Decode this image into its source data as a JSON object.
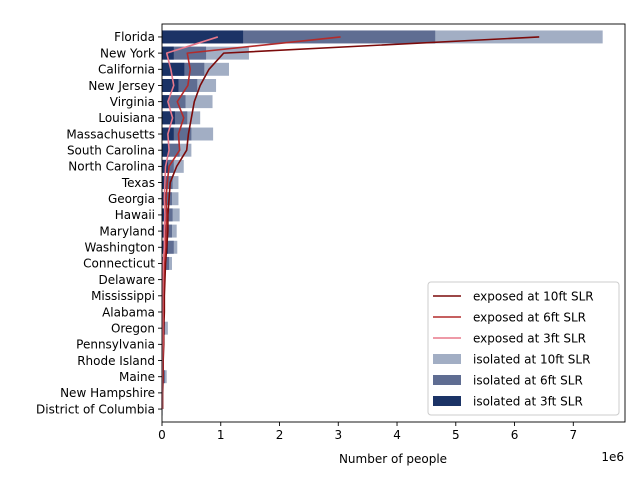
{
  "chart_data": {
    "type": "bar",
    "orientation": "horizontal",
    "xlabel": "Number of people",
    "x_offset_label": "1e6",
    "x_multiplier": 1000000,
    "xlim": [
      0,
      7.88
    ],
    "xticks": [
      0,
      1,
      2,
      3,
      4,
      5,
      6,
      7
    ],
    "grid": false,
    "legend_position": "lower right",
    "categories": [
      "Florida",
      "New York",
      "California",
      "New Jersey",
      "Virginia",
      "Louisiana",
      "Massachusetts",
      "South Carolina",
      "North Carolina",
      "Texas",
      "Georgia",
      "Hawaii",
      "Maryland",
      "Washington",
      "Connecticut",
      "Delaware",
      "Mississippi",
      "Alabama",
      "Oregon",
      "Pennsylvania",
      "Rhode Island",
      "Maine",
      "New Hampshire",
      "District of Columbia"
    ],
    "series": [
      {
        "name": "isolated at 10ft SLR",
        "kind": "bar",
        "color": "#a2aec4",
        "values": [
          7.5,
          1.48,
          1.14,
          0.92,
          0.86,
          0.65,
          0.87,
          0.5,
          0.37,
          0.28,
          0.28,
          0.3,
          0.25,
          0.26,
          0.17,
          0.03,
          0.03,
          0.03,
          0.1,
          0.03,
          0.02,
          0.08,
          0.01,
          0.01
        ]
      },
      {
        "name": "isolated at 6ft SLR",
        "kind": "bar",
        "color": "#5f6d92",
        "values": [
          4.65,
          0.75,
          0.72,
          0.6,
          0.4,
          0.43,
          0.5,
          0.3,
          0.2,
          0.18,
          0.17,
          0.18,
          0.17,
          0.2,
          0.12,
          0.02,
          0.02,
          0.02,
          0.05,
          0.02,
          0.01,
          0.05,
          0.01,
          0.005
        ]
      },
      {
        "name": "isolated at 3ft SLR",
        "kind": "bar",
        "color": "#1b3366",
        "values": [
          1.38,
          0.2,
          0.38,
          0.28,
          0.12,
          0.22,
          0.2,
          0.12,
          0.1,
          0.07,
          0.07,
          0.1,
          0.08,
          0.1,
          0.05,
          0.01,
          0.01,
          0.01,
          0.02,
          0.01,
          0.005,
          0.02,
          0.003,
          0.002
        ]
      },
      {
        "name": "exposed at 10ft SLR",
        "kind": "line",
        "color": "#7b0a0a",
        "values": [
          6.42,
          1.05,
          0.8,
          0.65,
          0.55,
          0.5,
          0.45,
          0.42,
          0.25,
          0.14,
          0.12,
          0.1,
          0.1,
          0.08,
          0.06,
          0.05,
          0.04,
          0.04,
          0.03,
          0.03,
          0.02,
          0.02,
          0.01,
          0.01
        ]
      },
      {
        "name": "exposed at 6ft SLR",
        "kind": "line",
        "color": "#b32b2b",
        "values": [
          3.04,
          0.43,
          0.48,
          0.44,
          0.26,
          0.37,
          0.28,
          0.3,
          0.12,
          0.09,
          0.07,
          0.08,
          0.07,
          0.06,
          0.04,
          0.03,
          0.02,
          0.02,
          0.02,
          0.02,
          0.01,
          0.01,
          0.005,
          0.005
        ]
      },
      {
        "name": "exposed at 3ft SLR",
        "kind": "line",
        "color": "#e8788a",
        "values": [
          0.95,
          0.08,
          0.15,
          0.2,
          0.1,
          0.18,
          0.1,
          0.12,
          0.06,
          0.05,
          0.04,
          0.05,
          0.04,
          0.04,
          0.02,
          0.015,
          0.01,
          0.01,
          0.01,
          0.01,
          0.005,
          0.005,
          0.003,
          0.002
        ]
      }
    ],
    "legend_order": [
      "exposed at 10ft SLR",
      "exposed at 6ft SLR",
      "exposed at 3ft SLR",
      "isolated at 10ft SLR",
      "isolated at 6ft SLR",
      "isolated at 3ft SLR"
    ]
  }
}
